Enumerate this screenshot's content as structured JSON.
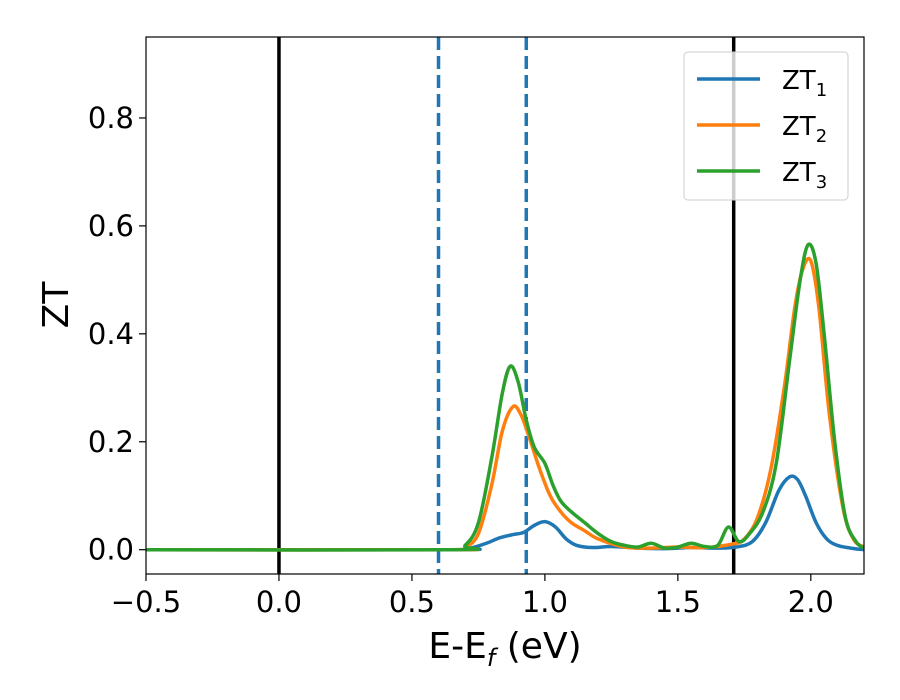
{
  "chart_data": {
    "type": "line",
    "title": "",
    "xlabel_main": "E-E",
    "xlabel_sub": "f",
    "xlabel_unit": " (eV)",
    "ylabel": "ZT",
    "xlim": [
      -0.5,
      2.2
    ],
    "ylim": [
      -0.045,
      0.95
    ],
    "grid": false,
    "legend_position": "top-right",
    "x_ticks": [
      {
        "value": -0.5,
        "label": "−0.5"
      },
      {
        "value": 0.0,
        "label": "0.0"
      },
      {
        "value": 0.5,
        "label": "0.5"
      },
      {
        "value": 1.0,
        "label": "1.0"
      },
      {
        "value": 1.5,
        "label": "1.5"
      },
      {
        "value": 2.0,
        "label": "2.0"
      }
    ],
    "y_ticks": [
      {
        "value": 0.0,
        "label": "0.0"
      },
      {
        "value": 0.2,
        "label": "0.2"
      },
      {
        "value": 0.4,
        "label": "0.4"
      },
      {
        "value": 0.6,
        "label": "0.6"
      },
      {
        "value": 0.8,
        "label": "0.8"
      }
    ],
    "vertical_lines": [
      {
        "x": 0.0,
        "style": "solid",
        "color": "#000000"
      },
      {
        "x": 1.71,
        "style": "solid",
        "color": "#000000"
      },
      {
        "x": 0.6,
        "style": "dashed",
        "color": "#1f77b4"
      },
      {
        "x": 0.93,
        "style": "dashed",
        "color": "#1f77b4"
      }
    ],
    "series": [
      {
        "name_main": "ZT",
        "name_sub": "1",
        "color": "#1f77b4",
        "x": [
          -0.5,
          0.65,
          0.72,
          0.78,
          0.83,
          0.88,
          0.92,
          0.96,
          1.0,
          1.04,
          1.08,
          1.12,
          1.18,
          1.25,
          1.35,
          1.45,
          1.55,
          1.65,
          1.72,
          1.78,
          1.83,
          1.88,
          1.92,
          1.95,
          1.98,
          2.02,
          2.06,
          2.1,
          2.15,
          2.2
        ],
        "y": [
          0.0,
          0.0,
          0.003,
          0.012,
          0.022,
          0.028,
          0.032,
          0.045,
          0.052,
          0.042,
          0.02,
          0.008,
          0.004,
          0.006,
          0.003,
          0.002,
          0.004,
          0.003,
          0.005,
          0.015,
          0.05,
          0.11,
          0.135,
          0.13,
          0.1,
          0.05,
          0.02,
          0.008,
          0.003,
          0.0
        ]
      },
      {
        "name_main": "ZT",
        "name_sub": "2",
        "color": "#ff7f0e",
        "x": [
          -0.5,
          0.65,
          0.7,
          0.75,
          0.8,
          0.84,
          0.88,
          0.91,
          0.94,
          0.98,
          1.02,
          1.06,
          1.1,
          1.15,
          1.2,
          1.3,
          1.4,
          1.5,
          1.6,
          1.7,
          1.75,
          1.8,
          1.85,
          1.9,
          1.94,
          1.97,
          2.0,
          2.03,
          2.07,
          2.12,
          2.16,
          2.2
        ],
        "y": [
          0.0,
          0.0,
          0.005,
          0.03,
          0.12,
          0.22,
          0.265,
          0.25,
          0.21,
          0.15,
          0.1,
          0.07,
          0.05,
          0.035,
          0.02,
          0.005,
          0.003,
          0.005,
          0.004,
          0.01,
          0.02,
          0.06,
          0.15,
          0.3,
          0.45,
          0.52,
          0.535,
          0.45,
          0.25,
          0.08,
          0.02,
          0.005
        ]
      },
      {
        "name_main": "ZT",
        "name_sub": "3",
        "color": "#2ca02c",
        "x": [
          -0.5,
          0.65,
          0.7,
          0.75,
          0.8,
          0.84,
          0.87,
          0.9,
          0.93,
          0.96,
          1.0,
          1.03,
          1.06,
          1.1,
          1.15,
          1.2,
          1.25,
          1.3,
          1.35,
          1.4,
          1.45,
          1.5,
          1.55,
          1.6,
          1.65,
          1.69,
          1.73,
          1.77,
          1.82,
          1.87,
          1.92,
          1.96,
          1.99,
          2.02,
          2.05,
          2.09,
          2.13,
          2.17,
          2.2
        ],
        "y": [
          0.0,
          0.0,
          0.008,
          0.05,
          0.17,
          0.29,
          0.34,
          0.31,
          0.24,
          0.19,
          0.16,
          0.12,
          0.09,
          0.07,
          0.05,
          0.03,
          0.015,
          0.008,
          0.005,
          0.012,
          0.003,
          0.005,
          0.012,
          0.006,
          0.008,
          0.042,
          0.015,
          0.03,
          0.07,
          0.16,
          0.35,
          0.5,
          0.565,
          0.53,
          0.4,
          0.2,
          0.06,
          0.015,
          0.003
        ]
      }
    ]
  }
}
